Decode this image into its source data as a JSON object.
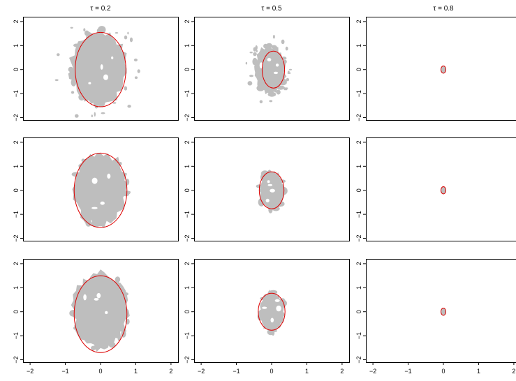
{
  "chart_data": {
    "type": "scatter",
    "layout": "3x3 small multiples",
    "column_titles": [
      "τ = 0.2",
      "τ = 0.5",
      "τ = 0.8"
    ],
    "xlim": [
      -2.2,
      2.2
    ],
    "ylim": [
      -2.1,
      2.2
    ],
    "x_ticks": [
      -2,
      -1,
      0,
      1,
      2
    ],
    "x_tick_labels": [
      "−2",
      "−1",
      "0",
      "1",
      "2"
    ],
    "y_ticks": [
      -2,
      -1,
      0,
      1,
      2
    ],
    "y_tick_labels": [
      "−2",
      "−1",
      "0",
      "1",
      "2"
    ],
    "grid": false,
    "colors": {
      "region": "#bebebe",
      "ellipse": "#dd0000",
      "frame": "#000000"
    },
    "panels": [
      {
        "row": 1,
        "col": 1,
        "region": {
          "cx": -0.05,
          "cy": 0.05,
          "rx": 0.8,
          "ry": 1.55,
          "irregular": true,
          "outliers": true
        },
        "ellipse": {
          "cx": 0.0,
          "cy": 0.0,
          "rx": 0.72,
          "ry": 1.55
        }
      },
      {
        "row": 1,
        "col": 2,
        "region": {
          "cx": -0.05,
          "cy": 0.0,
          "rx": 0.45,
          "ry": 1.0,
          "irregular": true,
          "outliers": true
        },
        "ellipse": {
          "cx": 0.05,
          "cy": 0.0,
          "rx": 0.32,
          "ry": 0.77
        }
      },
      {
        "row": 1,
        "col": 3,
        "region": {
          "cx": 0.0,
          "cy": 0.0,
          "rx": 0.08,
          "ry": 0.16,
          "irregular": false,
          "outliers": false
        },
        "ellipse": {
          "cx": 0.0,
          "cy": 0.0,
          "rx": 0.07,
          "ry": 0.15
        }
      },
      {
        "row": 2,
        "col": 1,
        "region": {
          "cx": 0.0,
          "cy": 0.05,
          "rx": 0.75,
          "ry": 1.55,
          "irregular": true,
          "outliers": false
        },
        "ellipse": {
          "cx": 0.0,
          "cy": 0.0,
          "rx": 0.75,
          "ry": 1.55
        }
      },
      {
        "row": 2,
        "col": 2,
        "region": {
          "cx": 0.0,
          "cy": 0.0,
          "rx": 0.35,
          "ry": 0.8,
          "irregular": true,
          "outliers": false
        },
        "ellipse": {
          "cx": 0.0,
          "cy": 0.0,
          "rx": 0.35,
          "ry": 0.77
        }
      },
      {
        "row": 2,
        "col": 3,
        "region": {
          "cx": 0.0,
          "cy": 0.0,
          "rx": 0.08,
          "ry": 0.16,
          "irregular": false,
          "outliers": false
        },
        "ellipse": {
          "cx": 0.0,
          "cy": 0.0,
          "rx": 0.07,
          "ry": 0.15
        }
      },
      {
        "row": 3,
        "col": 1,
        "region": {
          "cx": 0.0,
          "cy": 0.05,
          "rx": 0.78,
          "ry": 1.6,
          "irregular": true,
          "outliers": false
        },
        "ellipse": {
          "cx": 0.0,
          "cy": -0.1,
          "rx": 0.75,
          "ry": 1.6
        }
      },
      {
        "row": 3,
        "col": 2,
        "region": {
          "cx": 0.0,
          "cy": 0.0,
          "rx": 0.35,
          "ry": 0.85,
          "irregular": true,
          "outliers": false
        },
        "ellipse": {
          "cx": 0.0,
          "cy": 0.0,
          "rx": 0.38,
          "ry": 0.77
        }
      },
      {
        "row": 3,
        "col": 3,
        "region": {
          "cx": 0.0,
          "cy": 0.0,
          "rx": 0.08,
          "ry": 0.16,
          "irregular": false,
          "outliers": false
        },
        "ellipse": {
          "cx": 0.0,
          "cy": 0.0,
          "rx": 0.07,
          "ry": 0.15
        }
      }
    ]
  }
}
